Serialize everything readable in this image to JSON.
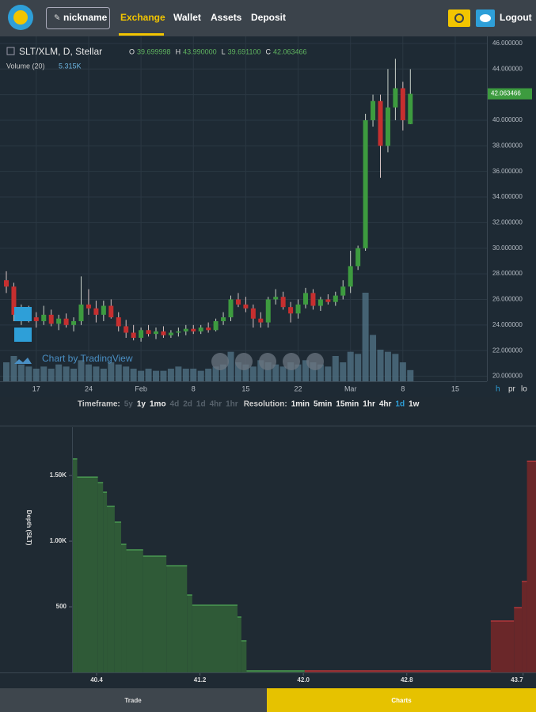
{
  "nav": {
    "user": "nickname",
    "links": [
      "Exchange",
      "Wallet",
      "Assets",
      "Deposit"
    ],
    "logout": "Logout"
  },
  "price_chart": {
    "type": "candlestick",
    "symbol": "SLT/XLM, D, Stellar",
    "ohlc_labels": [
      "O",
      "H",
      "L",
      "C"
    ],
    "ohlc_values": [
      "39.699998",
      "43.990000",
      "39.691100",
      "42.063466"
    ],
    "volume_title": "Volume (20)",
    "volume_value": "5.315K",
    "watermark": "Chart by TradingView",
    "open": [
      27.5,
      27.0,
      24.8,
      25.2,
      24.6,
      24.3,
      24.8,
      24.1,
      24.5,
      24.0,
      24.3,
      25.6,
      25.3,
      24.8,
      25.5,
      24.6,
      23.9,
      23.4,
      23.0,
      23.6,
      23.3,
      23.5,
      23.2,
      23.4,
      23.5,
      23.7,
      23.5,
      23.8,
      23.6,
      24.3,
      24.6,
      26.0,
      25.6,
      25.3,
      24.5,
      24.2,
      26.0,
      26.2,
      25.4,
      24.9,
      25.6,
      26.5,
      25.5,
      26.0,
      25.8,
      26.3,
      27.0,
      28.6,
      30.0,
      40.0,
      41.5,
      38.0,
      41.0,
      42.5,
      39.699998
    ],
    "high": [
      28.2,
      27.3,
      25.6,
      25.5,
      25.0,
      25.5,
      25.2,
      24.8,
      24.9,
      24.6,
      27.8,
      26.8,
      25.9,
      25.9,
      26.0,
      25.0,
      24.4,
      24.0,
      23.8,
      24.0,
      23.8,
      23.9,
      23.6,
      23.8,
      24.0,
      24.0,
      24.0,
      24.2,
      24.5,
      25.0,
      26.3,
      26.5,
      26.2,
      25.6,
      25.0,
      26.2,
      26.8,
      26.6,
      25.8,
      26.0,
      26.9,
      26.8,
      26.2,
      26.4,
      26.6,
      27.5,
      29.8,
      30.2,
      40.5,
      42.0,
      42.0,
      44.0,
      44.8,
      43.0,
      43.99
    ],
    "low": [
      26.5,
      24.3,
      24.0,
      24.2,
      23.8,
      24.0,
      23.9,
      23.6,
      23.8,
      23.5,
      24.0,
      24.8,
      24.2,
      24.3,
      24.5,
      23.5,
      23.0,
      22.8,
      22.7,
      23.1,
      22.9,
      23.0,
      23.0,
      23.1,
      23.2,
      23.3,
      23.3,
      23.4,
      23.5,
      24.0,
      24.3,
      25.4,
      25.0,
      23.8,
      23.8,
      23.8,
      25.6,
      25.2,
      24.2,
      24.5,
      25.3,
      25.2,
      25.1,
      25.6,
      25.5,
      26.0,
      26.5,
      28.3,
      29.8,
      39.5,
      35.5,
      37.5,
      40.0,
      39.2,
      39.6911
    ],
    "close": [
      27.0,
      24.8,
      25.2,
      24.6,
      24.3,
      24.8,
      24.1,
      24.5,
      24.0,
      24.3,
      25.6,
      25.3,
      24.8,
      25.5,
      24.6,
      23.9,
      23.4,
      23.0,
      23.6,
      23.3,
      23.5,
      23.2,
      23.4,
      23.5,
      23.7,
      23.5,
      23.8,
      23.6,
      24.3,
      24.6,
      26.0,
      25.6,
      25.3,
      24.5,
      24.2,
      26.0,
      26.2,
      25.4,
      24.9,
      25.6,
      26.5,
      25.5,
      26.0,
      25.8,
      26.3,
      27.0,
      28.6,
      30.0,
      40.0,
      41.5,
      38.0,
      41.0,
      42.5,
      40.0,
      42.063466
    ],
    "volume": [
      9000,
      12000,
      8000,
      7000,
      6000,
      7000,
      6000,
      8000,
      7000,
      6000,
      10000,
      8000,
      7000,
      6000,
      9000,
      8000,
      7000,
      6000,
      5000,
      6000,
      5000,
      5000,
      6000,
      7000,
      6000,
      6000,
      5000,
      6000,
      7000,
      8000,
      14000,
      9000,
      8000,
      7000,
      10000,
      9000,
      8000,
      7000,
      9000,
      8000,
      10000,
      9000,
      8000,
      7000,
      12000,
      9000,
      14000,
      13000,
      42000,
      22000,
      15000,
      14000,
      13000,
      9000,
      5315
    ],
    "up_color": "#3d9b3f",
    "down_color": "#c62f2f",
    "volume_color": "#4f7083",
    "ylim": [
      19.6,
      46.55
    ],
    "yticks": [
      {
        "value": 20,
        "label": "20.000000"
      },
      {
        "value": 22,
        "label": "22.000000"
      },
      {
        "value": 24,
        "label": "24.000000"
      },
      {
        "value": 26,
        "label": "26.000000"
      },
      {
        "value": 28,
        "label": "28.000000"
      },
      {
        "value": 30,
        "label": "30.000000"
      },
      {
        "value": 32,
        "label": "32.000000"
      },
      {
        "value": 34,
        "label": "34.000000"
      },
      {
        "value": 36,
        "label": "36.000000"
      },
      {
        "value": 38,
        "label": "38.000000"
      },
      {
        "value": 40,
        "label": "40.000000"
      },
      {
        "value": 42,
        "label": "42.000000"
      },
      {
        "value": 44,
        "label": "44.000000"
      },
      {
        "value": 46,
        "label": "46.000000"
      }
    ],
    "last_price_label": "42.063466",
    "x_labels": [
      "17",
      "24",
      "Feb",
      "8",
      "15",
      "22",
      "Mar",
      "8",
      "15"
    ],
    "scale_options": [
      "h",
      "pr",
      "lo"
    ],
    "grid": true
  },
  "controls": {
    "timeframe_label": "Timeframe:",
    "timeframes": [
      "5y",
      "1y",
      "1mo",
      "4d",
      "2d",
      "1d",
      "4hr",
      "1hr"
    ],
    "timeframes_enabled": [
      false,
      true,
      true,
      false,
      false,
      false,
      false,
      false
    ],
    "resolution_label": "Resolution:",
    "resolutions": [
      "1min",
      "5min",
      "15min",
      "1hr",
      "4hr",
      "1d",
      "1w"
    ],
    "resolutions_active": [
      false,
      false,
      false,
      false,
      false,
      true,
      false
    ]
  },
  "depth_chart": {
    "type": "depth",
    "y_label": "Depth (SLT)",
    "bid_edges": [
      40.21,
      40.25,
      40.41,
      40.45,
      40.48,
      40.54,
      40.59,
      40.63,
      40.76,
      40.94,
      41.1,
      41.14,
      41.49,
      41.52,
      41.56,
      42.01
    ],
    "bid_depths": [
      1627,
      1488,
      1446,
      1373,
      1265,
      1145,
      976,
      934,
      886,
      813,
      590,
      512,
      422,
      241,
      12
    ],
    "ask_edges": [
      42.01,
      43.45,
      43.63,
      43.69,
      43.73,
      43.8
    ],
    "ask_depths": [
      12,
      392,
      494,
      693,
      1608
    ],
    "bid_color": "#2f5a37",
    "ask_color": "#6a2729",
    "xlim": [
      40.21,
      43.8
    ],
    "xticks": [
      40.4,
      41.2,
      {
        "value": 42,
        "label": "42.0"
      },
      42.8,
      43.7
    ],
    "ylim": [
      0,
      1850
    ],
    "yticks": [
      500,
      {
        "value": 1000,
        "label": "1.00K"
      },
      {
        "value": 1500,
        "label": "1.50K"
      }
    ]
  },
  "tabs": [
    "Trade",
    "Charts"
  ]
}
